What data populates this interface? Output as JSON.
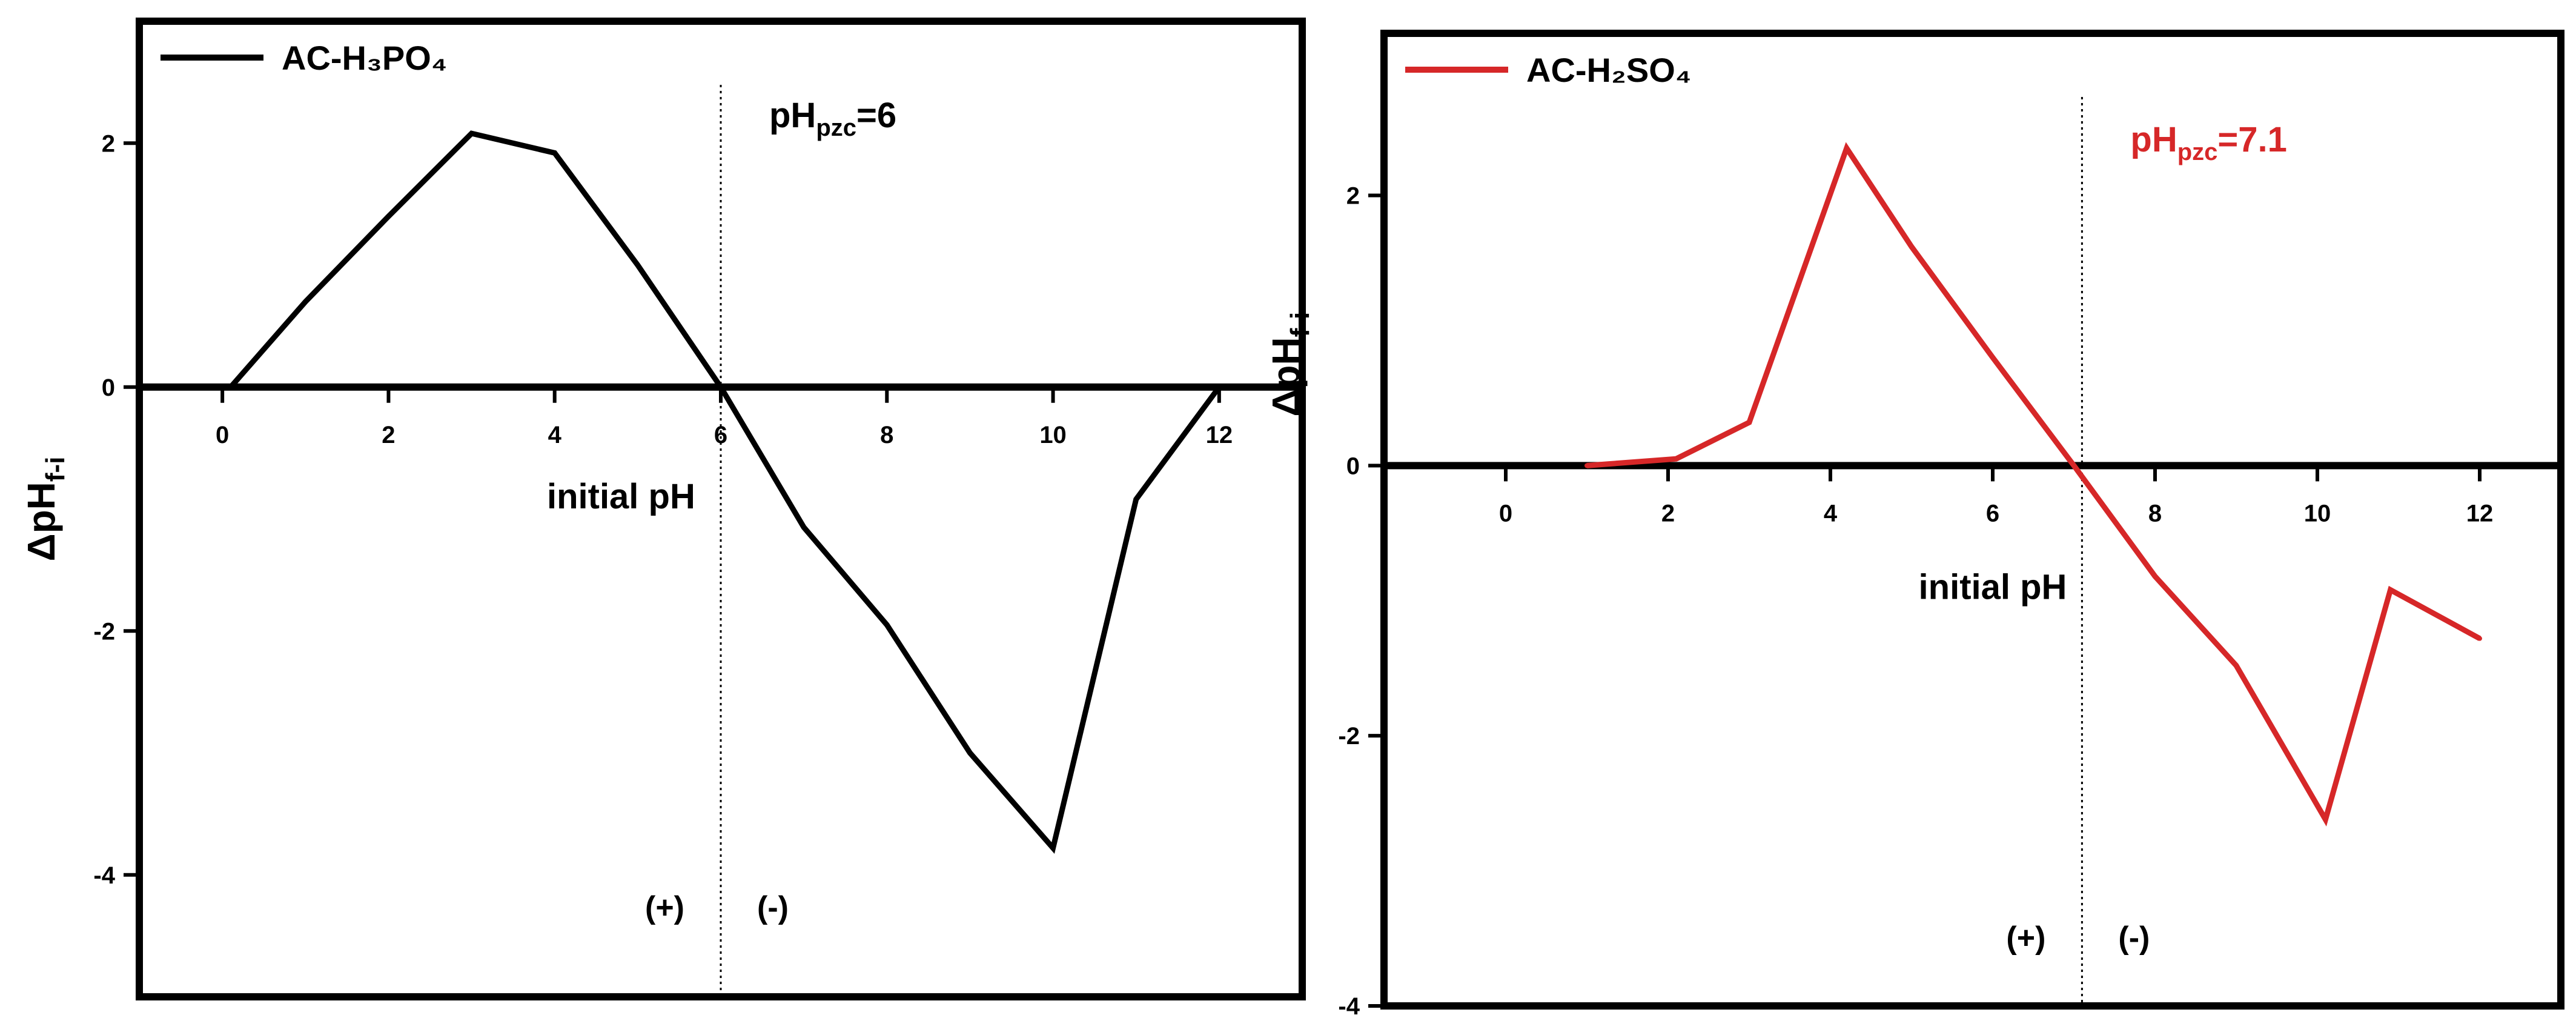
{
  "chart_data": [
    {
      "type": "line",
      "xlim": [
        -1,
        13
      ],
      "ylim": [
        -5,
        3
      ],
      "x_ticks": [
        0,
        2,
        4,
        6,
        8,
        10,
        12
      ],
      "y_ticks": [
        -4,
        -2,
        0,
        2
      ],
      "xlabel": "initial pH",
      "ylabel": "ΔpHf-i",
      "ylabel_main": "ΔpH",
      "ylabel_sub": "f-i",
      "legend_position": "top-left",
      "series": [
        {
          "name": "AC-H₃PO₄",
          "color": "#000000",
          "x": [
            0.1,
            1,
            2,
            3,
            4,
            5,
            6,
            7,
            8,
            9,
            10,
            11,
            12
          ],
          "y": [
            0,
            0.7,
            1.4,
            2.08,
            1.92,
            1.0,
            0,
            -1.15,
            -1.95,
            -3.0,
            -3.78,
            -0.92,
            0
          ]
        }
      ],
      "pzc": {
        "x": 6,
        "label_main": "pH",
        "label_sub": "pzc",
        "label_value": "=6",
        "color": "#000000"
      },
      "regions": {
        "positive": "(+)",
        "negative": "(-)"
      }
    },
    {
      "type": "line",
      "xlim": [
        -1.5,
        13
      ],
      "ylim": [
        -4,
        3.2
      ],
      "x_ticks": [
        0,
        2,
        4,
        6,
        8,
        10,
        12
      ],
      "y_ticks": [
        -4,
        -2,
        0,
        2
      ],
      "xlabel": "initial pH",
      "ylabel": "ΔpHf-i",
      "ylabel_main": "ΔpH",
      "ylabel_sub": "f-i",
      "legend_position": "top-left",
      "series": [
        {
          "name": "AC-H₂SO₄",
          "color": "#d62728",
          "x": [
            1,
            2.1,
            3,
            4.2,
            5,
            6,
            7,
            8,
            9,
            10.1,
            10.9,
            12
          ],
          "y": [
            0,
            0.05,
            0.32,
            2.35,
            1.62,
            0.8,
            0,
            -0.82,
            -1.48,
            -2.62,
            -0.92,
            -1.28
          ]
        }
      ],
      "pzc": {
        "x": 7.1,
        "label_main": "pH",
        "label_sub": "pzc",
        "label_value": "=7.1",
        "color": "#d62728"
      },
      "regions": {
        "positive": "(+)",
        "negative": "(-)"
      }
    }
  ]
}
